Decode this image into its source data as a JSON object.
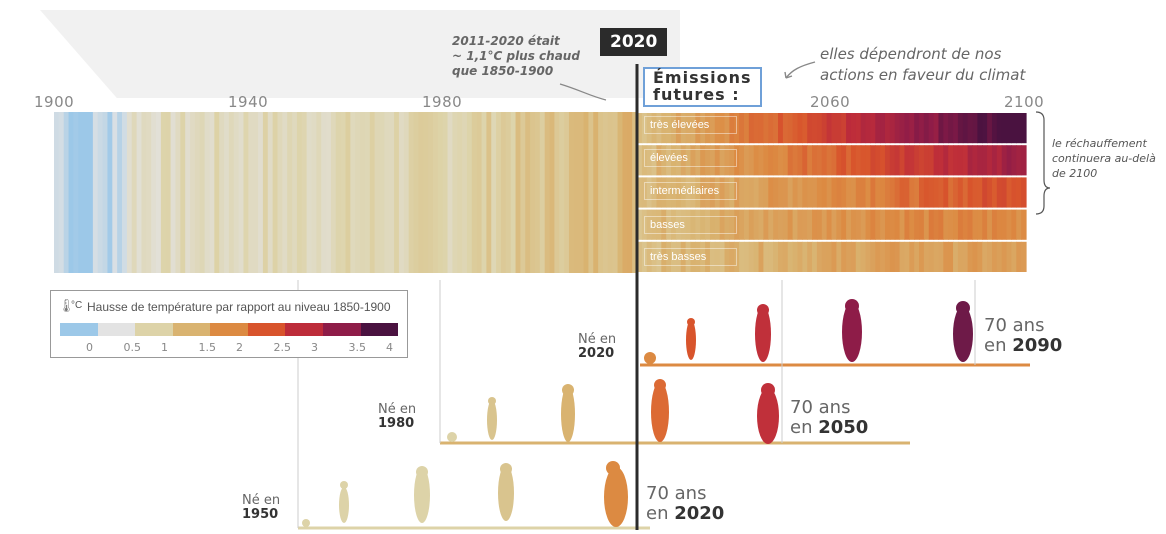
{
  "axis": {
    "years": [
      "1900",
      "1940",
      "1980",
      "2020",
      "2060",
      "2100"
    ]
  },
  "annotations": {
    "note_2011_2020": [
      "2011-2020 était",
      "~ 1,1°C plus chaud",
      "que 1850-1900"
    ],
    "emissions_label": [
      "Émissions",
      "futures :"
    ],
    "depend_note": [
      "elles dépendront de nos",
      "actions en faveur du climat"
    ],
    "right_note": [
      "le réchauffement",
      "continuera au-delà",
      "de 2100"
    ]
  },
  "scenarios": [
    "très élevées",
    "élevées",
    "intermédiaires",
    "basses",
    "très basses"
  ],
  "legend": {
    "unit_icon": "thermometer-icon",
    "unit": "°C",
    "title": "Hausse de température par rapport au niveau 1850-1900",
    "ticks": [
      "0",
      "0.5",
      "1",
      "1.5",
      "2",
      "2.5",
      "3",
      "3.5",
      "4"
    ],
    "colors": [
      "#9cc8e8",
      "#e3e3e3",
      "#ddd3a8",
      "#d9b370",
      "#dc8a42",
      "#d8542c",
      "#bd2c3a",
      "#8e1c48",
      "#4a1240"
    ]
  },
  "generations": [
    {
      "ne": "Né en",
      "year": "1950",
      "age_text": "70 ans",
      "age_year": "2020"
    },
    {
      "ne": "Né en",
      "year": "1980",
      "age_text": "70 ans",
      "age_year": "2050"
    },
    {
      "ne": "Né en",
      "year": "2020",
      "age_text": "70 ans",
      "age_year": "2090"
    }
  ],
  "chart_data": {
    "type": "heatmap",
    "x_range": [
      1900,
      2100
    ],
    "observed_period": [
      1900,
      2020
    ],
    "scenarios": [
      "très élevées",
      "élevées",
      "intermédiaires",
      "basses",
      "très basses"
    ],
    "value_unit": "°C",
    "value_range": [
      0,
      4
    ]
  }
}
